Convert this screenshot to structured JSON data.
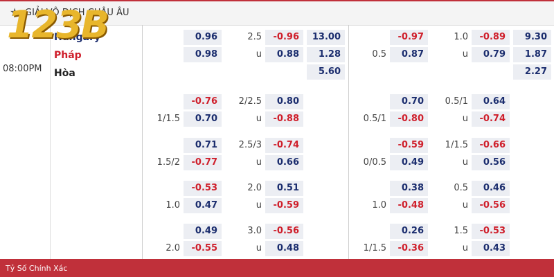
{
  "header": {
    "star": "★",
    "league": "GIẢI VÔ ĐỊCH CHÂU ÂU",
    "logo": "123B"
  },
  "match": {
    "time": "08:00PM",
    "teams": [
      "Hungary",
      "Pháp",
      "Hòa"
    ]
  },
  "halves": [
    {
      "groups": [
        {
          "rows": [
            {
              "hdp": "0.96",
              "ou_label": "2.5",
              "ou": "-0.96",
              "x12": "13.00"
            },
            {
              "hdp": "0.98",
              "ou_label": "u",
              "ou": "0.88",
              "x12": "1.28"
            },
            {
              "x12": "5.60"
            }
          ]
        },
        {
          "rows": [
            {
              "hdp": "-0.76",
              "ou_label": "2/2.5",
              "ou": "0.80"
            },
            {
              "hdp_label": "1/1.5",
              "hdp": "0.70",
              "ou_label": "u",
              "ou": "-0.88"
            }
          ]
        },
        {
          "rows": [
            {
              "hdp": "0.71",
              "ou_label": "2.5/3",
              "ou": "-0.74"
            },
            {
              "hdp_label": "1.5/2",
              "hdp": "-0.77",
              "ou_label": "u",
              "ou": "0.66"
            }
          ]
        },
        {
          "rows": [
            {
              "hdp": "-0.53",
              "ou_label": "2.0",
              "ou": "0.51"
            },
            {
              "hdp_label": "1.0",
              "hdp": "0.47",
              "ou_label": "u",
              "ou": "-0.59"
            }
          ]
        },
        {
          "rows": [
            {
              "hdp": "0.49",
              "ou_label": "3.0",
              "ou": "-0.56"
            },
            {
              "hdp_label": "2.0",
              "hdp": "-0.55",
              "ou_label": "u",
              "ou": "0.48"
            }
          ]
        }
      ]
    },
    {
      "groups": [
        {
          "rows": [
            {
              "hdp": "-0.97",
              "ou_label": "1.0",
              "ou": "-0.89",
              "x12": "9.30"
            },
            {
              "hdp_label": "0.5",
              "hdp": "0.87",
              "ou_label": "u",
              "ou": "0.79",
              "x12": "1.87"
            },
            {
              "x12": "2.27"
            }
          ]
        },
        {
          "rows": [
            {
              "hdp": "0.70",
              "ou_label": "0.5/1",
              "ou": "0.64"
            },
            {
              "hdp_label": "0.5/1",
              "hdp": "-0.80",
              "ou_label": "u",
              "ou": "-0.74"
            }
          ]
        },
        {
          "rows": [
            {
              "hdp": "-0.59",
              "ou_label": "1/1.5",
              "ou": "-0.66"
            },
            {
              "hdp_label": "0/0.5",
              "hdp": "0.49",
              "ou_label": "u",
              "ou": "0.56"
            }
          ]
        },
        {
          "rows": [
            {
              "hdp": "0.38",
              "ou_label": "0.5",
              "ou": "0.46"
            },
            {
              "hdp_label": "1.0",
              "hdp": "-0.48",
              "ou_label": "u",
              "ou": "-0.56"
            }
          ]
        },
        {
          "rows": [
            {
              "hdp": "0.26",
              "ou_label": "1.5",
              "ou": "-0.53"
            },
            {
              "hdp_label": "1/1.5",
              "hdp": "-0.36",
              "ou_label": "u",
              "ou": "0.43"
            }
          ]
        }
      ]
    }
  ],
  "footer": "Tỷ Số Chính Xác"
}
